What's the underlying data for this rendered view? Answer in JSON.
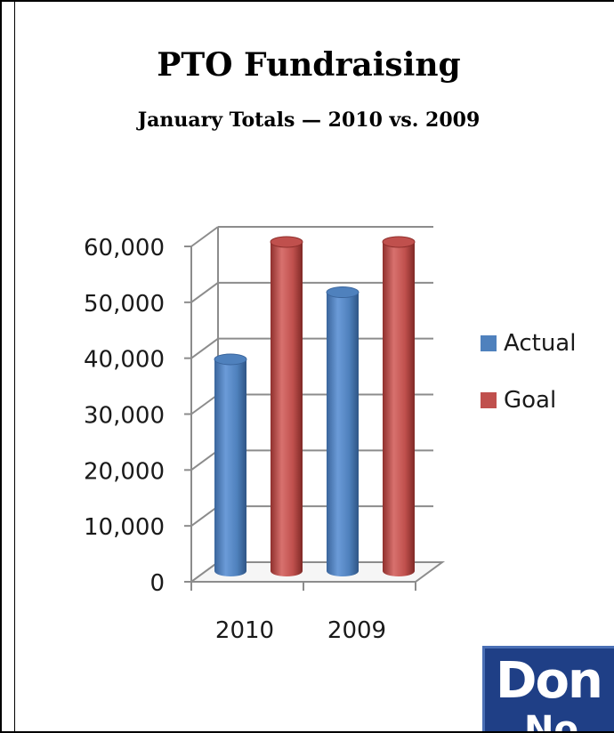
{
  "chart_data": {
    "type": "bar",
    "title": "PTO Fundraising",
    "subtitle": "January Totals — 2010 vs. 2009",
    "categories": [
      "2010",
      "2009"
    ],
    "series": [
      {
        "name": "Actual",
        "values": [
          39000,
          51000
        ],
        "color": "#4f81bd"
      },
      {
        "name": "Goal",
        "values": [
          60000,
          60000
        ],
        "color": "#c0504d"
      }
    ],
    "y_ticks": [
      "0",
      "10,000",
      "20,000",
      "30,000",
      "40,000",
      "50,000",
      "60,000"
    ],
    "ylim": [
      0,
      60000
    ],
    "legend_position": "right",
    "grid": true,
    "style": "3d-cylinder"
  },
  "badge": {
    "line1": "Don",
    "line2": "No"
  }
}
